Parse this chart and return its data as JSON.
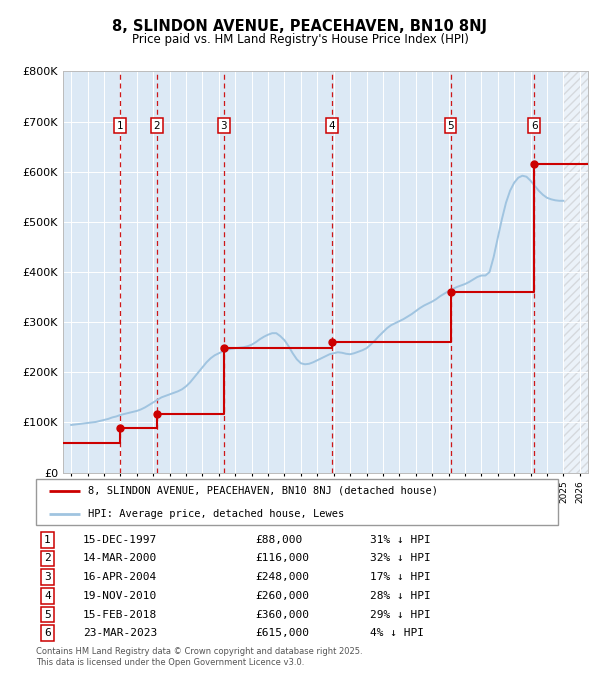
{
  "title": "8, SLINDON AVENUE, PEACEHAVEN, BN10 8NJ",
  "subtitle": "Price paid vs. HM Land Registry's House Price Index (HPI)",
  "legend_line1": "8, SLINDON AVENUE, PEACEHAVEN, BN10 8NJ (detached house)",
  "legend_line2": "HPI: Average price, detached house, Lewes",
  "copyright": "Contains HM Land Registry data © Crown copyright and database right 2025.\nThis data is licensed under the Open Government Licence v3.0.",
  "transactions": [
    {
      "num": 1,
      "date": "15-DEC-1997",
      "price": 88000,
      "pct": "31%",
      "year_x": 1997.96
    },
    {
      "num": 2,
      "date": "14-MAR-2000",
      "price": 116000,
      "pct": "32%",
      "year_x": 2000.21
    },
    {
      "num": 3,
      "date": "16-APR-2004",
      "price": 248000,
      "pct": "17%",
      "year_x": 2004.29
    },
    {
      "num": 4,
      "date": "19-NOV-2010",
      "price": 260000,
      "pct": "28%",
      "year_x": 2010.88
    },
    {
      "num": 5,
      "date": "15-FEB-2018",
      "price": 360000,
      "pct": "29%",
      "year_x": 2018.12
    },
    {
      "num": 6,
      "date": "23-MAR-2023",
      "price": 615000,
      "pct": "4%",
      "year_x": 2023.22
    }
  ],
  "ylim": [
    0,
    800000
  ],
  "xlim": [
    1994.5,
    2026.5
  ],
  "yticks": [
    0,
    100000,
    200000,
    300000,
    400000,
    500000,
    600000,
    700000,
    800000
  ],
  "ytick_labels": [
    "£0",
    "£100K",
    "£200K",
    "£300K",
    "£400K",
    "£500K",
    "£600K",
    "£700K",
    "£800K"
  ],
  "plot_bg_color": "#dce9f5",
  "hpi_color": "#a0c4e0",
  "price_color": "#cc0000",
  "vline_color": "#cc0000",
  "hpi_data_x": [
    1995.0,
    1995.25,
    1995.5,
    1995.75,
    1996.0,
    1996.25,
    1996.5,
    1996.75,
    1997.0,
    1997.25,
    1997.5,
    1997.75,
    1998.0,
    1998.25,
    1998.5,
    1998.75,
    1999.0,
    1999.25,
    1999.5,
    1999.75,
    2000.0,
    2000.25,
    2000.5,
    2000.75,
    2001.0,
    2001.25,
    2001.5,
    2001.75,
    2002.0,
    2002.25,
    2002.5,
    2002.75,
    2003.0,
    2003.25,
    2003.5,
    2003.75,
    2004.0,
    2004.25,
    2004.5,
    2004.75,
    2005.0,
    2005.25,
    2005.5,
    2005.75,
    2006.0,
    2006.25,
    2006.5,
    2006.75,
    2007.0,
    2007.25,
    2007.5,
    2007.75,
    2008.0,
    2008.25,
    2008.5,
    2008.75,
    2009.0,
    2009.25,
    2009.5,
    2009.75,
    2010.0,
    2010.25,
    2010.5,
    2010.75,
    2011.0,
    2011.25,
    2011.5,
    2011.75,
    2012.0,
    2012.25,
    2012.5,
    2012.75,
    2013.0,
    2013.25,
    2013.5,
    2013.75,
    2014.0,
    2014.25,
    2014.5,
    2014.75,
    2015.0,
    2015.25,
    2015.5,
    2015.75,
    2016.0,
    2016.25,
    2016.5,
    2016.75,
    2017.0,
    2017.25,
    2017.5,
    2017.75,
    2018.0,
    2018.25,
    2018.5,
    2018.75,
    2019.0,
    2019.25,
    2019.5,
    2019.75,
    2020.0,
    2020.25,
    2020.5,
    2020.75,
    2021.0,
    2021.25,
    2021.5,
    2021.75,
    2022.0,
    2022.25,
    2022.5,
    2022.75,
    2023.0,
    2023.25,
    2023.5,
    2023.75,
    2024.0,
    2024.25,
    2024.5,
    2024.75,
    2025.0
  ],
  "hpi_data_y": [
    95000,
    96000,
    97000,
    98000,
    99000,
    100000,
    101000,
    103000,
    105000,
    107000,
    110000,
    112000,
    115000,
    117000,
    119000,
    121000,
    123000,
    126000,
    130000,
    135000,
    140000,
    145000,
    150000,
    153000,
    156000,
    159000,
    162000,
    166000,
    172000,
    180000,
    190000,
    200000,
    210000,
    220000,
    228000,
    234000,
    238000,
    242000,
    245000,
    247000,
    248000,
    249000,
    250000,
    252000,
    255000,
    260000,
    266000,
    271000,
    275000,
    278000,
    278000,
    272000,
    264000,
    252000,
    238000,
    226000,
    218000,
    216000,
    217000,
    220000,
    224000,
    228000,
    232000,
    236000,
    238000,
    240000,
    239000,
    237000,
    236000,
    238000,
    241000,
    244000,
    248000,
    255000,
    263000,
    272000,
    280000,
    288000,
    294000,
    298000,
    302000,
    306000,
    311000,
    316000,
    322000,
    328000,
    333000,
    337000,
    341000,
    346000,
    352000,
    357000,
    362000,
    366000,
    370000,
    373000,
    376000,
    380000,
    385000,
    390000,
    393000,
    393000,
    400000,
    430000,
    468000,
    505000,
    538000,
    562000,
    578000,
    588000,
    592000,
    590000,
    582000,
    572000,
    562000,
    554000,
    548000,
    545000,
    543000,
    542000,
    542000
  ],
  "price_data_x": [
    1994.5,
    1997.96,
    1997.96,
    2000.21,
    2000.21,
    2004.29,
    2004.29,
    2010.88,
    2010.88,
    2018.12,
    2018.12,
    2023.22,
    2023.22,
    2026.5
  ],
  "price_data_y": [
    60000,
    60000,
    88000,
    88000,
    116000,
    116000,
    248000,
    248000,
    260000,
    260000,
    360000,
    360000,
    615000,
    615000
  ]
}
